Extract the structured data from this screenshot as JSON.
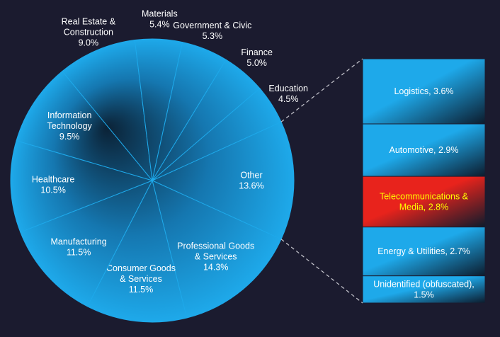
{
  "chart_data": {
    "type": "pie",
    "categories": [
      "Other",
      "Professional Goods\n& Services",
      "Consumer Goods\n& Services",
      "Manufacturing",
      "Healthcare",
      "Information\nTechnology",
      "Real Estate &\nConstruction",
      "Materials",
      "Government & Civic",
      "Finance",
      "Education"
    ],
    "values": [
      13.6,
      14.3,
      11.5,
      11.5,
      10.5,
      9.5,
      9.0,
      5.4,
      5.3,
      5.0,
      4.5
    ],
    "value_labels": [
      "13.6%",
      "14.3%",
      "11.5%",
      "11.5%",
      "10.5%",
      "9.5%",
      "9.0%",
      "5.4%",
      "5.3%",
      "5.0%",
      "4.5%"
    ],
    "color": "#1ea9ea",
    "breakdown": {
      "type": "bar",
      "labels": [
        "Logistics, 3.6%",
        "Automotive, 2.9%",
        "Telecommunications &\nMedia, 2.8%",
        "Energy & Utilities, 2.7%",
        "Unidentified (obfuscated),\n1.5%"
      ],
      "values": [
        3.6,
        2.9,
        2.8,
        2.7,
        1.5
      ],
      "colors": [
        "#1ea9ea",
        "#1ea9ea",
        "#e8231c",
        "#1ea9ea",
        "#1ea9ea"
      ]
    }
  }
}
